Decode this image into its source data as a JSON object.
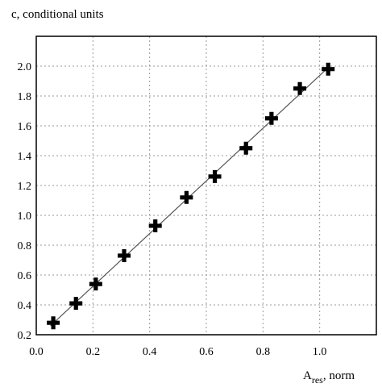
{
  "chart_data": {
    "type": "scatter",
    "ylabel": "c, conditional units",
    "xlabel_main": "A",
    "xlabel_sub": "res",
    "xlabel_rest": ", norm",
    "xlim": [
      0.0,
      1.2
    ],
    "ylim": [
      0.2,
      2.2
    ],
    "grid": true,
    "x_ticks": [
      "0.0",
      "0.2",
      "0.4",
      "0.6",
      "0.8",
      "1.0"
    ],
    "x_tick_values": [
      0.0,
      0.2,
      0.4,
      0.6,
      0.8,
      1.0
    ],
    "y_ticks": [
      "0.2",
      "0.4",
      "0.6",
      "0.8",
      "1.0",
      "1.2",
      "1.4",
      "1.6",
      "1.8",
      "2.0"
    ],
    "y_tick_values": [
      0.2,
      0.4,
      0.6,
      0.8,
      1.0,
      1.2,
      1.4,
      1.6,
      1.8,
      2.0
    ],
    "points": [
      {
        "x": 0.06,
        "y": 0.28
      },
      {
        "x": 0.14,
        "y": 0.41
      },
      {
        "x": 0.21,
        "y": 0.54
      },
      {
        "x": 0.31,
        "y": 0.73
      },
      {
        "x": 0.42,
        "y": 0.93
      },
      {
        "x": 0.53,
        "y": 1.12
      },
      {
        "x": 0.63,
        "y": 1.26
      },
      {
        "x": 0.74,
        "y": 1.45
      },
      {
        "x": 0.83,
        "y": 1.65
      },
      {
        "x": 0.93,
        "y": 1.85
      },
      {
        "x": 1.03,
        "y": 1.98
      }
    ],
    "fit_line": {
      "x": [
        0.05,
        1.03
      ],
      "y": [
        0.26,
        1.99
      ]
    }
  }
}
